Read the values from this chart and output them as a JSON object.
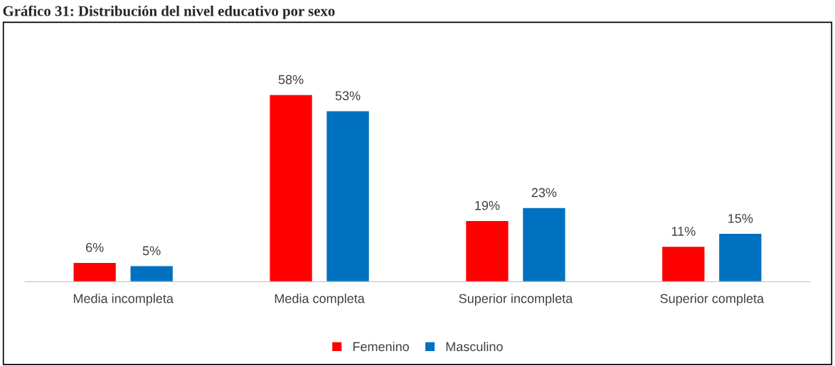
{
  "chart_data": {
    "type": "bar",
    "title": "Gráfico 31: Distribución del nivel educativo por sexo",
    "categories": [
      "Media incompleta",
      "Media completa",
      "Superior incompleta",
      "Superior completa"
    ],
    "series": [
      {
        "name": "Femenino",
        "color": "#ff0000",
        "values": [
          6,
          58,
          19,
          11
        ],
        "value_labels": [
          "6%",
          "58%",
          "19%",
          "11%"
        ]
      },
      {
        "name": "Masculino",
        "color": "#0070c0",
        "values": [
          5,
          53,
          23,
          15
        ],
        "value_labels": [
          "5%",
          "53%",
          "23%",
          "15%"
        ]
      }
    ],
    "data_labels": true,
    "legend": "bottom",
    "grid": false
  }
}
